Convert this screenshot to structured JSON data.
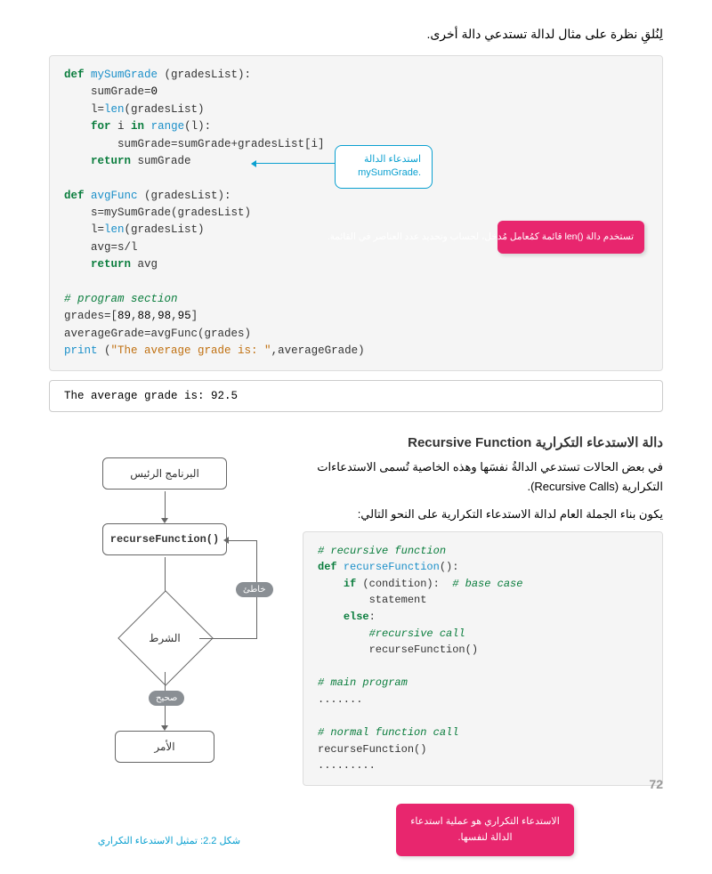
{
  "intro": "لِنُلقِ نظرة على مثال لدالة تستدعي دالة أخرى.",
  "code1": {
    "lines": [
      {
        "t": "def ",
        "c": "kw"
      },
      {
        "t": "mySumGrade ",
        "c": "fn"
      },
      {
        "t": "(gradesList):\n    sumGrade="
      },
      {
        "t": "0",
        "c": "num"
      },
      {
        "t": "\n    l="
      },
      {
        "t": "len",
        "c": "fn"
      },
      {
        "t": "(gradesList)\n    "
      },
      {
        "t": "for",
        "c": "kw"
      },
      {
        "t": " i "
      },
      {
        "t": "in",
        "c": "kw"
      },
      {
        "t": " "
      },
      {
        "t": "range",
        "c": "fn"
      },
      {
        "t": "(l):\n        sumGrade=sumGrade+gradesList[i]\n    "
      },
      {
        "t": "return",
        "c": "kw"
      },
      {
        "t": " sumGrade\n\n"
      },
      {
        "t": "def ",
        "c": "kw"
      },
      {
        "t": "avgFunc ",
        "c": "fn"
      },
      {
        "t": "(gradesList):\n    s=mySumGrade(gradesList)\n    l="
      },
      {
        "t": "len",
        "c": "fn"
      },
      {
        "t": "(gradesList)\n    avg=s/l\n    "
      },
      {
        "t": "return",
        "c": "kw"
      },
      {
        "t": " avg\n\n"
      },
      {
        "t": "# program section",
        "c": "cm"
      },
      {
        "t": "\ngrades=["
      },
      {
        "t": "89",
        "c": "num"
      },
      {
        "t": ","
      },
      {
        "t": "88",
        "c": "num"
      },
      {
        "t": ","
      },
      {
        "t": "98",
        "c": "num"
      },
      {
        "t": ","
      },
      {
        "t": "95",
        "c": "num"
      },
      {
        "t": "]\naverageGrade=avgFunc(grades)\n"
      },
      {
        "t": "print",
        "c": "fn"
      },
      {
        "t": " ("
      },
      {
        "t": "\"The average grade is: \"",
        "c": "str"
      },
      {
        "t": ",averageGrade)"
      }
    ]
  },
  "callout1": "استدعاء الدالة\n.mySumGrade",
  "pink1": "تستخدم دالة ()len قائمة كمُعامل مُدخل، لحساب وتحديد عدد العناصر في القائمة.",
  "output": "The average grade is: 92.5",
  "heading": "دالة الاستدعاء التكرارية Recursive Function",
  "para1": "في بعض الحالات تستدعي الدالةُ نفسَها وهذه الخاصية تُسمى الاستدعاءات التكرارية (Recursive Calls).",
  "para2": "يكون بناء الجملة العام لدالة الاستدعاء التكرارية على النحو التالي:",
  "code2": {
    "lines": [
      {
        "t": "# recursive function",
        "c": "cm"
      },
      {
        "t": "\n"
      },
      {
        "t": "def ",
        "c": "kw"
      },
      {
        "t": "recurseFunction",
        "c": "fn"
      },
      {
        "t": "():\n    "
      },
      {
        "t": "if",
        "c": "kw"
      },
      {
        "t": " (condition):  "
      },
      {
        "t": "# base case",
        "c": "cm"
      },
      {
        "t": "\n        statement\n    "
      },
      {
        "t": "else",
        "c": "kw"
      },
      {
        "t": ":\n        "
      },
      {
        "t": "#recursive call",
        "c": "cm"
      },
      {
        "t": "\n        recurseFunction()\n\n"
      },
      {
        "t": "# main program",
        "c": "cm"
      },
      {
        "t": "\n.......\n\n"
      },
      {
        "t": "# normal function call",
        "c": "cm"
      },
      {
        "t": "\nrecurseFunction()\n........."
      }
    ]
  },
  "pink2": "الاستدعاء التكراري هو عملية استدعاء الدالة لنفسها.",
  "fc": {
    "start": "البرنامج الرئيس",
    "func": "recurseFunction()",
    "cond": "الشرط",
    "stmt": "الأمر",
    "false_lbl": "خاطئ",
    "true_lbl": "صحيح"
  },
  "caption": "شكل 2.2: تمثيل الاستدعاء التكراري",
  "page_num": "72"
}
